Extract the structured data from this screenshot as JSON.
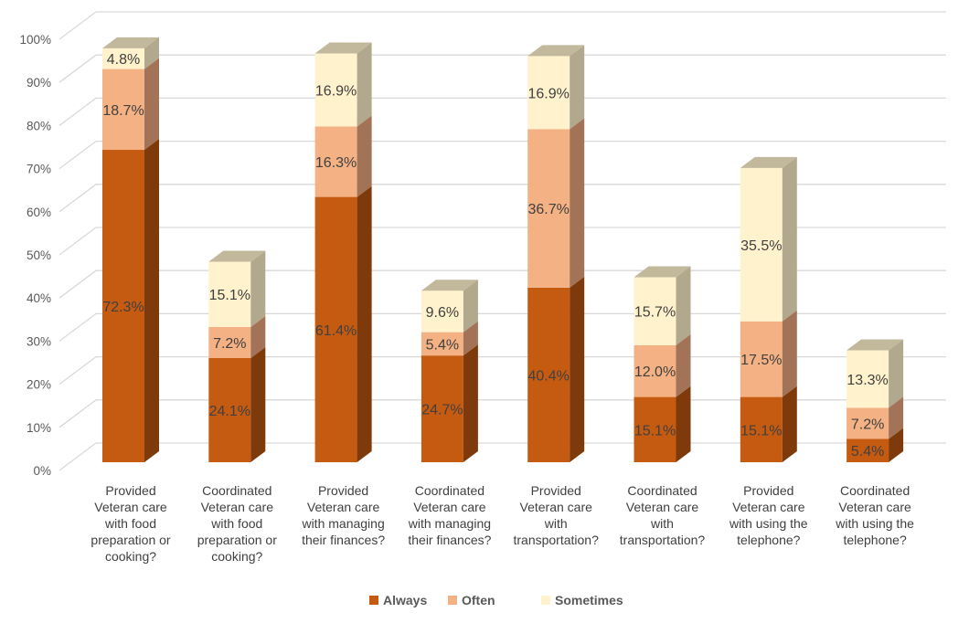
{
  "chart_data": {
    "type": "bar",
    "stacked": true,
    "style": "3d-stacked-column",
    "title": "",
    "xlabel": "",
    "ylabel": "",
    "ylim": [
      0,
      100
    ],
    "yticks": [
      "0%",
      "10%",
      "20%",
      "30%",
      "40%",
      "50%",
      "60%",
      "70%",
      "80%",
      "90%",
      "100%"
    ],
    "grid": true,
    "legend_position": "bottom",
    "categories": [
      [
        "Provided",
        "Veteran care",
        "with food",
        "preparation or",
        "cooking?"
      ],
      [
        "Coordinated",
        "Veteran care",
        "with food",
        "preparation or",
        "cooking?"
      ],
      [
        "Provided",
        "Veteran care",
        "with managing",
        "their finances?"
      ],
      [
        "Coordinated",
        "Veteran care",
        "with managing",
        "their finances?"
      ],
      [
        "Provided",
        "Veteran care",
        "with",
        "transportation?"
      ],
      [
        "Coordinated",
        "Veteran care",
        "with",
        "transportation?"
      ],
      [
        "Provided",
        "Veteran care",
        "with using the",
        "telephone?"
      ],
      [
        "Coordinated",
        "Veteran care",
        "with using the",
        "telephone?"
      ]
    ],
    "series": [
      {
        "name": "Always",
        "color": "#c55a11",
        "side": "#7e3a0b",
        "values": [
          72.3,
          24.1,
          61.4,
          24.7,
          40.4,
          15.1,
          15.1,
          5.4
        ],
        "labels": [
          "72.3%",
          "24.1%",
          "61.4%",
          "24.7%",
          "40.4%",
          "15.1%",
          "15.1%",
          "5.4%"
        ]
      },
      {
        "name": "Often",
        "color": "#f4b183",
        "side": "#a27356",
        "values": [
          18.7,
          7.2,
          16.3,
          5.4,
          36.7,
          12.0,
          17.5,
          7.2
        ],
        "labels": [
          "18.7%",
          "7.2%",
          "16.3%",
          "5.4%",
          "36.7%",
          "12.0%",
          "17.5%",
          "7.2%"
        ]
      },
      {
        "name": "Sometimes",
        "color": "#fff2cc",
        "side": "#b1a88d",
        "values": [
          4.8,
          15.1,
          16.9,
          9.6,
          16.9,
          15.7,
          35.5,
          13.3
        ],
        "labels": [
          "4.8%",
          "15.1%",
          "16.9%",
          "9.6%",
          "16.9%",
          "15.7%",
          "35.5%",
          "13.3%"
        ]
      }
    ],
    "top_color": "#c2b89c"
  }
}
